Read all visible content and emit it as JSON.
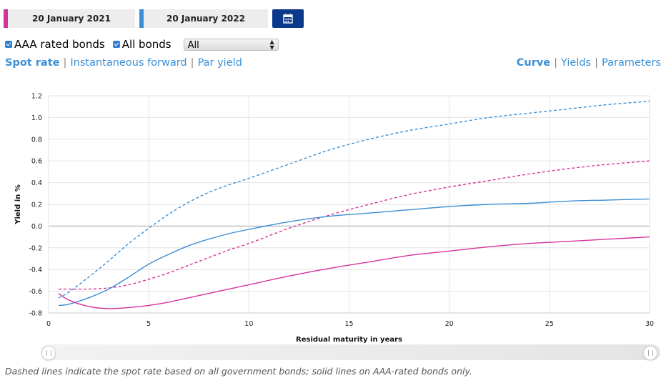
{
  "date_range": {
    "start": "20 January 2021",
    "end": "20 January 2022"
  },
  "colors": {
    "start": "#d6339a",
    "end": "#3b8fd6",
    "calendar_button": "#0b3a8c"
  },
  "filters": {
    "aaa_label": "AAA rated bonds",
    "aaa_checked": true,
    "all_label": "All bonds",
    "all_checked": true,
    "select_value": "All"
  },
  "curve_types": {
    "spot": "Spot rate",
    "forward": "Instantaneous forward",
    "par": "Par yield",
    "active": "Spot rate"
  },
  "views": {
    "curve": "Curve",
    "yields": "Yields",
    "parameters": "Parameters",
    "active": "Curve"
  },
  "chart_data": {
    "type": "line",
    "xlabel": "Residual maturity in years",
    "ylabel": "Yield in %",
    "xlim": [
      0,
      30
    ],
    "ylim": [
      -0.8,
      1.2
    ],
    "xticks": [
      0,
      5,
      10,
      15,
      20,
      25,
      30
    ],
    "yticks": [
      -0.8,
      -0.6,
      -0.4,
      -0.2,
      0.0,
      0.2,
      0.4,
      0.6,
      0.8,
      1.0,
      1.2
    ],
    "ytick_labels": [
      "-0.8",
      "-0.6",
      "-0.4",
      "-0.2",
      "0.0",
      "0.2",
      "0.4",
      "0.6",
      "0.8",
      "1.0",
      "1.2"
    ],
    "xtick_labels": [
      "0",
      "5",
      "10",
      "15",
      "20",
      "25",
      "30"
    ],
    "grid": true,
    "series": [
      {
        "date": "20 January 2022",
        "bonds": "All bonds",
        "style": "dashed",
        "color": "#3b8fd6",
        "x": [
          0.5,
          1,
          2,
          3,
          4,
          5,
          6,
          7,
          8,
          9,
          10,
          12,
          14,
          16,
          18,
          20,
          22,
          24,
          26,
          28,
          30
        ],
        "y": [
          -0.66,
          -0.61,
          -0.47,
          -0.32,
          -0.16,
          -0.02,
          0.11,
          0.22,
          0.31,
          0.38,
          0.44,
          0.57,
          0.7,
          0.8,
          0.88,
          0.94,
          1.0,
          1.04,
          1.08,
          1.12,
          1.15
        ]
      },
      {
        "date": "20 January 2021",
        "bonds": "All bonds",
        "style": "dashed",
        "color": "#d6339a",
        "x": [
          0.5,
          1,
          2,
          3,
          4,
          5,
          6,
          7,
          8,
          9,
          10,
          12,
          14,
          16,
          18,
          20,
          22,
          24,
          26,
          28,
          30
        ],
        "y": [
          -0.58,
          -0.58,
          -0.58,
          -0.57,
          -0.54,
          -0.49,
          -0.43,
          -0.36,
          -0.29,
          -0.22,
          -0.16,
          -0.02,
          0.1,
          0.2,
          0.29,
          0.36,
          0.42,
          0.48,
          0.53,
          0.57,
          0.6
        ]
      },
      {
        "date": "20 January 2022",
        "bonds": "AAA rated bonds",
        "style": "solid",
        "color": "#3b8fd6",
        "x": [
          0.5,
          1,
          2,
          3,
          4,
          5,
          6,
          7,
          8,
          9,
          10,
          12,
          14,
          16,
          18,
          20,
          22,
          24,
          26,
          28,
          30
        ],
        "y": [
          -0.73,
          -0.72,
          -0.66,
          -0.58,
          -0.47,
          -0.35,
          -0.26,
          -0.18,
          -0.12,
          -0.07,
          -0.03,
          0.04,
          0.09,
          0.12,
          0.15,
          0.18,
          0.2,
          0.21,
          0.23,
          0.24,
          0.25
        ]
      },
      {
        "date": "20 January 2021",
        "bonds": "AAA rated bonds",
        "style": "solid",
        "color": "#d6339a",
        "x": [
          0.5,
          1,
          2,
          3,
          4,
          5,
          6,
          7,
          8,
          9,
          10,
          12,
          14,
          16,
          18,
          20,
          22,
          24,
          26,
          28,
          30
        ],
        "y": [
          -0.62,
          -0.68,
          -0.74,
          -0.76,
          -0.75,
          -0.73,
          -0.7,
          -0.66,
          -0.62,
          -0.58,
          -0.54,
          -0.46,
          -0.39,
          -0.33,
          -0.27,
          -0.23,
          -0.19,
          -0.16,
          -0.14,
          -0.12,
          -0.1
        ]
      }
    ]
  },
  "footnote": "Dashed lines indicate the spot rate based on all government bonds; solid lines on AAA-rated bonds only."
}
